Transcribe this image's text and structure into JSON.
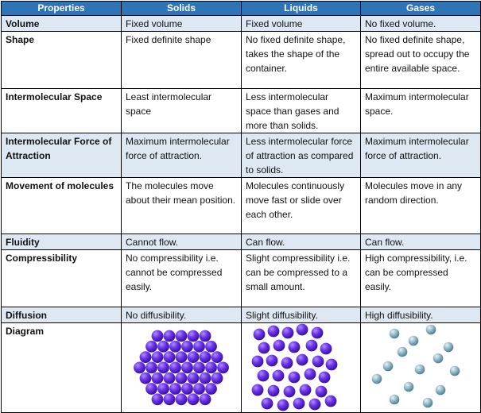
{
  "table": {
    "header": [
      "Properties",
      "Solids",
      "Liquids",
      "Gases"
    ],
    "rows": [
      [
        "Volume",
        "Fixed volume",
        "Fixed volume",
        "No fixed volume."
      ],
      [
        "Shape",
        "Fixed definite shape",
        "No fixed definite shape, takes the shape of the container.",
        "No fixed definite shape, spread out to occupy the entire available space."
      ],
      [
        "Intermolecular Space",
        "Least intermolecular space",
        "Less intermolecular space than gases and more than solids.",
        "Maximum intermolecular space."
      ],
      [
        "Intermolecular Force of Attraction",
        "Maximum intermolecular force of attraction.",
        "Less intermolecular force of attraction as compared to solids.",
        "Maximum intermolecular force of attraction."
      ],
      [
        "Movement of molecules",
        "The molecules move about their mean position.",
        "Molecules continuously move fast or slide over each other.",
        "Molecules move in any random direction."
      ],
      [
        "Fluidity",
        "Cannot flow.",
        "Can flow.",
        "Can flow."
      ],
      [
        "Compressibility",
        "No compressibility i.e. cannot be compressed easily.",
        "Slight compressibility i.e. can be compressed to a small amount.",
        "High compressibility, i.e. can be compressed easily."
      ],
      [
        "Diffusion",
        "No diffusibility.",
        "Slight diffusibility.",
        "High diffusibility."
      ],
      [
        "Diagram"
      ]
    ]
  }
}
